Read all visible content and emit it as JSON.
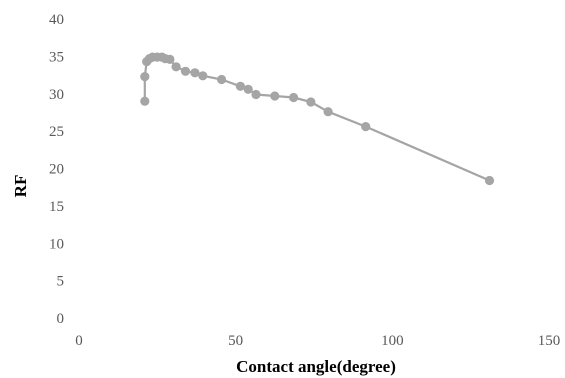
{
  "chart_data": {
    "type": "line",
    "title": "",
    "xlabel": "Contact angle(degree)",
    "ylabel": "RF",
    "xlim": [
      0,
      150
    ],
    "ylim": [
      0,
      40
    ],
    "x_ticks": [
      0,
      50,
      100,
      150
    ],
    "y_ticks": [
      0,
      5,
      10,
      15,
      20,
      25,
      30,
      35,
      40
    ],
    "grid": false,
    "legend": "none",
    "series": [
      {
        "color": "#a5a5a5",
        "marker": "circle",
        "points": [
          [
            21,
            29.0
          ],
          [
            21,
            32.3
          ],
          [
            21.6,
            34.3
          ],
          [
            22.5,
            34.7
          ],
          [
            23.5,
            34.9
          ],
          [
            25,
            34.9
          ],
          [
            26.5,
            34.9
          ],
          [
            27.5,
            34.7
          ],
          [
            29,
            34.6
          ],
          [
            31,
            33.6
          ],
          [
            34,
            33.0
          ],
          [
            37,
            32.8
          ],
          [
            39.5,
            32.4
          ],
          [
            45.5,
            31.9
          ],
          [
            51.5,
            31.0
          ],
          [
            54,
            30.6
          ],
          [
            56.5,
            29.9
          ],
          [
            62.5,
            29.7
          ],
          [
            68.5,
            29.5
          ],
          [
            74,
            28.9
          ],
          [
            79.5,
            27.6
          ],
          [
            91.5,
            25.6
          ],
          [
            131,
            18.4
          ]
        ]
      }
    ]
  }
}
